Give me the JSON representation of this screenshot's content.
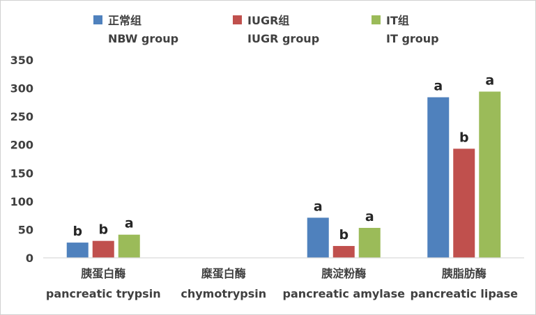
{
  "chart_data": {
    "type": "bar",
    "categories": [
      {
        "label_zh": "胰蛋白酶",
        "label_en": "pancreatic trypsin"
      },
      {
        "label_zh": "糜蛋白酶",
        "label_en": "chymotrypsin"
      },
      {
        "label_zh": "胰淀粉酶",
        "label_en": "pancreatic amylase"
      },
      {
        "label_zh": "胰脂肪酶",
        "label_en": "pancreatic lipase"
      }
    ],
    "series": [
      {
        "name_zh": "正常组",
        "name_en": "NBW group",
        "color": "#4f81bd",
        "values": [
          27,
          null,
          71,
          284
        ],
        "sig": [
          "b",
          "",
          "a",
          "a"
        ]
      },
      {
        "name_zh": "IUGR组",
        "name_en": "IUGR group",
        "color": "#c0504d",
        "values": [
          30,
          null,
          21,
          193
        ],
        "sig": [
          "b",
          "",
          "b",
          "b"
        ]
      },
      {
        "name_zh": "IT组",
        "name_en": "IT group",
        "color": "#9bbb59",
        "values": [
          41,
          null,
          53,
          294
        ],
        "sig": [
          "a",
          "",
          "a",
          "a"
        ]
      }
    ],
    "yticks": [
      0,
      50,
      100,
      150,
      200,
      250,
      300,
      350
    ],
    "ylim": [
      0,
      350
    ],
    "grid": false,
    "legend": "top"
  }
}
